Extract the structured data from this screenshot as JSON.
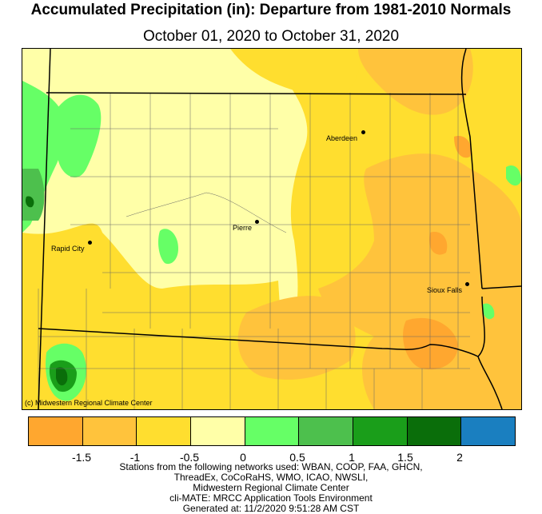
{
  "title": "Accumulated Precipitation (in): Departure from 1981-2010 Normals",
  "subtitle": "October 01, 2020 to October 31, 2020",
  "credit": "(c) Midwestern Regional Climate Center",
  "cities": [
    {
      "name": "Aberdeen"
    },
    {
      "name": "Pierre"
    },
    {
      "name": "Rapid City"
    },
    {
      "name": "Sioux Falls"
    }
  ],
  "legend": {
    "colors": [
      "#ffa72f",
      "#ffc33c",
      "#ffde2f",
      "#ffffa8",
      "#66ff66",
      "#4dc04d",
      "#1a9e1a",
      "#0a6e0a",
      "#1a7fc0"
    ],
    "ticks": [
      "-1.5",
      "-1",
      "-0.5",
      "0",
      "0.5",
      "1",
      "1.5",
      "2"
    ]
  },
  "footer": {
    "line1": "Stations from the following networks used: WBAN, COOP, FAA, GHCN,",
    "line2": "ThreadEx, CoCoRaHS, WMO, ICAO, NWSLI,",
    "line3": "Midwestern Regional Climate Center",
    "line4": "cli-MATE: MRCC Application Tools Environment",
    "line5": "Generated at: 11/2/2020 9:51:28 AM CST"
  }
}
